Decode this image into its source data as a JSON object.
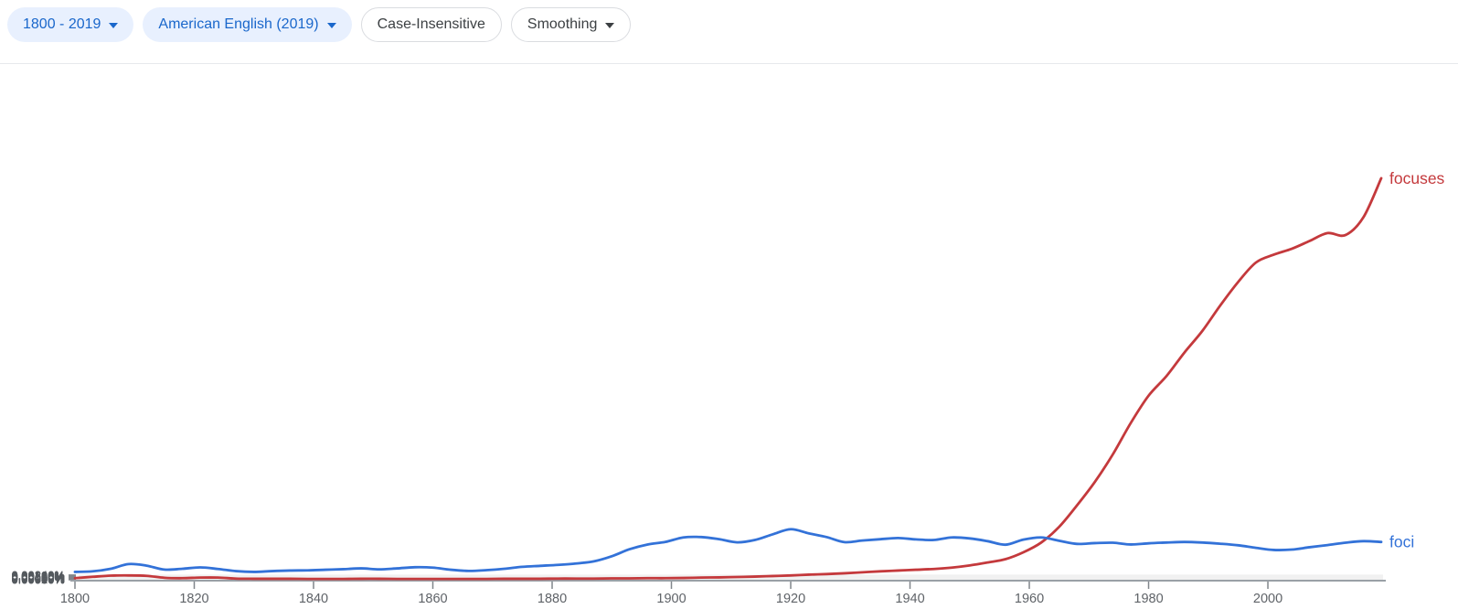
{
  "toolbar": {
    "year_range": {
      "label": "1800 - 2019"
    },
    "corpus": {
      "label": "American English (2019)"
    },
    "case_sensitivity": {
      "label": "Case-Insensitive"
    },
    "smoothing": {
      "label": "Smoothing"
    }
  },
  "colors": {
    "series_focuses": "#c4393c",
    "series_foci": "#3372d8",
    "chip_blue_bg": "#e8f0fe",
    "chip_blue_text": "#1a67cb",
    "chip_outline_border": "#dadce0",
    "chip_outline_text": "#3c4043",
    "gridline": "#f1f1f1",
    "axis_line": "#9aa0a6",
    "tick": "#80868b",
    "axis_label": "#5f6368"
  },
  "chart_data": {
    "type": "line",
    "title": "",
    "xlabel": "",
    "ylabel": "",
    "xlim": [
      1800,
      2019
    ],
    "ylim": [
      0,
      0.0024
    ],
    "grid": true,
    "legend_position": "end-of-line",
    "x_ticks": [
      1800,
      1820,
      1840,
      1860,
      1880,
      1900,
      1920,
      1940,
      1960,
      1980,
      2000
    ],
    "y_ticks": [
      {
        "value": 0.0,
        "label": "0.00000%"
      },
      {
        "value": 2e-06,
        "label": "0.00020%"
      },
      {
        "value": 4e-06,
        "label": "0.00040%"
      },
      {
        "value": 6e-06,
        "label": "0.00060%"
      },
      {
        "value": 8e-06,
        "label": "0.00080%"
      },
      {
        "value": 1e-05,
        "label": "0.00100%"
      },
      {
        "value": 1.2e-05,
        "label": "0.00120%"
      },
      {
        "value": 1.4e-05,
        "label": "0.00140%"
      },
      {
        "value": 1.6e-05,
        "label": "0.00160%"
      },
      {
        "value": 1.8e-05,
        "label": "0.00180%"
      },
      {
        "value": 2e-05,
        "label": "0.00200%"
      },
      {
        "value": 2.2e-05,
        "label": "0.00220%"
      },
      {
        "value": 2.4e-05,
        "label": "0.00240%"
      }
    ],
    "y_tick_unit_note": "labels shown as percent with 5 decimals; values stored as percent",
    "x": [
      1800,
      1803,
      1806,
      1809,
      1812,
      1815,
      1818,
      1821,
      1824,
      1827,
      1830,
      1833,
      1836,
      1839,
      1842,
      1845,
      1848,
      1851,
      1854,
      1857,
      1860,
      1863,
      1866,
      1869,
      1872,
      1875,
      1878,
      1881,
      1884,
      1887,
      1890,
      1893,
      1896,
      1899,
      1902,
      1905,
      1908,
      1911,
      1914,
      1917,
      1920,
      1923,
      1926,
      1929,
      1932,
      1935,
      1938,
      1941,
      1944,
      1947,
      1950,
      1953,
      1956,
      1959,
      1962,
      1965,
      1968,
      1971,
      1974,
      1977,
      1980,
      1983,
      1986,
      1989,
      1992,
      1995,
      1998,
      2001,
      2004,
      2007,
      2010,
      2013,
      2016,
      2019
    ],
    "series": [
      {
        "name": "focuses",
        "color": "#c4393c",
        "values": [
          8e-06,
          1.5e-05,
          2.1e-05,
          2.2e-05,
          2e-05,
          1e-05,
          8e-06,
          1.1e-05,
          1.1e-05,
          6e-06,
          5e-06,
          5e-06,
          5e-06,
          4e-06,
          4e-06,
          4e-06,
          5e-06,
          5e-06,
          4e-06,
          4e-06,
          4e-06,
          4e-06,
          4e-06,
          4e-06,
          5e-06,
          5e-06,
          5e-06,
          6e-06,
          6e-06,
          6e-06,
          7e-06,
          7e-06,
          8e-06,
          8e-06,
          9e-06,
          1.1e-05,
          1.2e-05,
          1.4e-05,
          1.6e-05,
          1.9e-05,
          2.2e-05,
          2.6e-05,
          2.9e-05,
          3.3e-05,
          3.8e-05,
          4.3e-05,
          4.7e-05,
          5.1e-05,
          5.5e-05,
          6.2e-05,
          7.3e-05,
          8.8e-05,
          0.000105,
          0.00014,
          0.00019,
          0.00027,
          0.00038,
          0.0005,
          0.00064,
          0.0008,
          0.00094,
          0.00104,
          0.00116,
          0.00127,
          0.0014,
          0.00152,
          0.00162,
          0.00166,
          0.00169,
          0.00173,
          0.00177,
          0.00176,
          0.00185,
          0.00205
        ]
      },
      {
        "name": "foci",
        "color": "#3372d8",
        "values": [
          4e-05,
          4.3e-05,
          5.6e-05,
          8e-05,
          7.2e-05,
          5.2e-05,
          5.6e-05,
          6.3e-05,
          5.5e-05,
          4.4e-05,
          4e-05,
          4.4e-05,
          4.7e-05,
          4.8e-05,
          5.1e-05,
          5.4e-05,
          5.8e-05,
          5.3e-05,
          5.8e-05,
          6.4e-05,
          6.2e-05,
          5.1e-05,
          4.5e-05,
          4.9e-05,
          5.6e-05,
          6.6e-05,
          7.1e-05,
          7.6e-05,
          8.3e-05,
          9.4e-05,
          0.00012,
          0.000156,
          0.00018,
          0.000193,
          0.000216,
          0.000218,
          0.000207,
          0.000191,
          0.000203,
          0.000232,
          0.000258,
          0.000237,
          0.000218,
          0.000192,
          0.0002,
          0.000207,
          0.000213,
          0.000206,
          0.000203,
          0.000216,
          0.000211,
          0.000197,
          0.000179,
          0.000205,
          0.000216,
          0.000199,
          0.000183,
          0.000187,
          0.000189,
          0.00018,
          0.000186,
          0.00019,
          0.000193,
          0.00019,
          0.000184,
          0.000176,
          0.000163,
          0.000152,
          0.000154,
          0.000166,
          0.000177,
          0.000189,
          0.000197,
          0.000193
        ]
      }
    ]
  }
}
